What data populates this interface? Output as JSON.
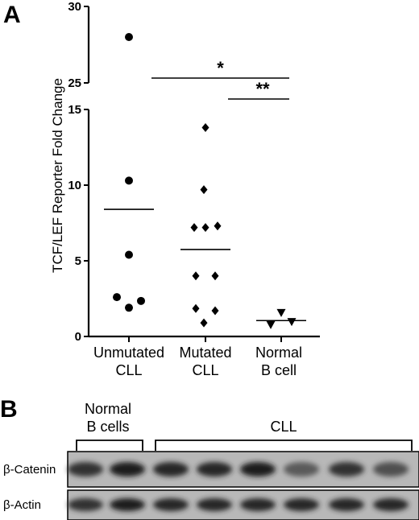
{
  "panel_a_letter": "A",
  "panel_b_letter": "B",
  "chart_data": {
    "type": "scatter",
    "title": "",
    "ylabel": "TCF/LEF Reporter Fold Change",
    "xlabel": "",
    "categories": [
      {
        "line1": "Unmutated",
        "line2": "CLL"
      },
      {
        "line1": "Mutated",
        "line2": "CLL"
      },
      {
        "line1": "Normal",
        "line2": "B cell"
      }
    ],
    "y_axis_lower": {
      "range": [
        0,
        15
      ],
      "ticks": [
        "0",
        "5",
        "10",
        "15"
      ]
    },
    "y_axis_upper": {
      "range": [
        25,
        30
      ],
      "ticks": [
        "25",
        "30"
      ]
    },
    "series": [
      {
        "category": "Unmutated CLL",
        "marker": "circle",
        "values": [
          28.0,
          10.3,
          5.4,
          2.6,
          2.35,
          1.9
        ],
        "mean": 8.4
      },
      {
        "category": "Mutated CLL",
        "marker": "diamond",
        "values": [
          13.8,
          9.7,
          7.2,
          7.3,
          7.2,
          4.0,
          4.0,
          1.85,
          1.7,
          0.9
        ],
        "mean": 5.75
      },
      {
        "category": "Normal B cell",
        "marker": "triangle-down",
        "values": [
          1.55,
          0.75,
          0.95
        ],
        "mean": 1.05
      }
    ],
    "significance": [
      {
        "label": "*",
        "from": "Unmutated CLL",
        "to": "Normal B cell"
      },
      {
        "label": "**",
        "from": "Mutated CLL",
        "to": "Normal B cell"
      }
    ],
    "grid": false,
    "broken_axis": true
  },
  "blot": {
    "groups": [
      {
        "line1": "Normal",
        "line2": "B cells",
        "lanes": 2
      },
      {
        "line1": "CLL",
        "line2": "",
        "lanes": 6
      }
    ],
    "rows": [
      {
        "label": "β-Catenin",
        "intensities": [
          0.75,
          0.85,
          0.8,
          0.8,
          0.85,
          0.55,
          0.75,
          0.6
        ]
      },
      {
        "label": "β-Actin",
        "intensities": [
          0.75,
          0.85,
          0.8,
          0.8,
          0.8,
          0.8,
          0.8,
          0.8
        ]
      }
    ]
  }
}
